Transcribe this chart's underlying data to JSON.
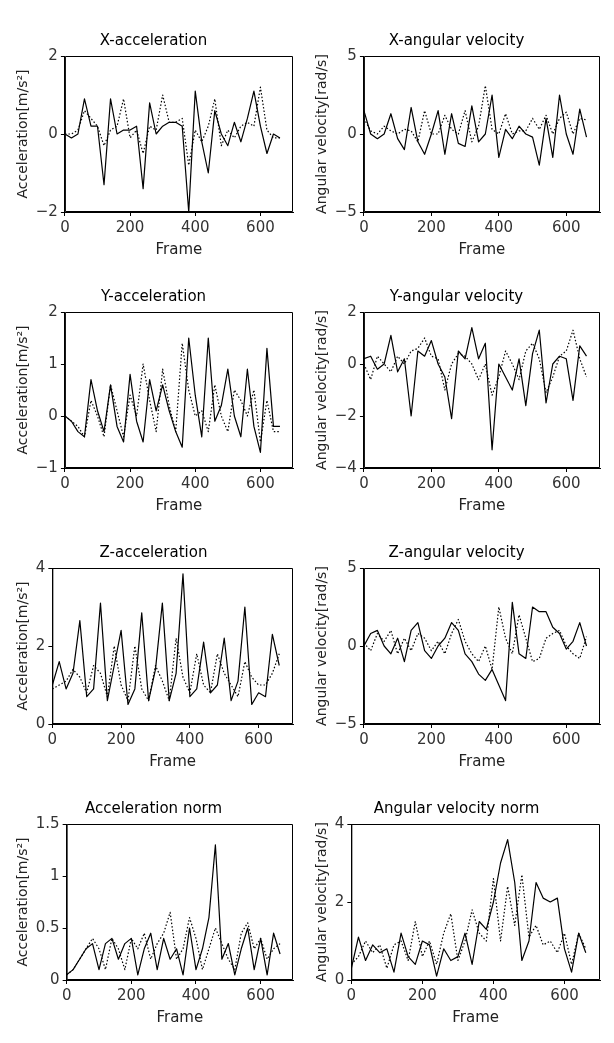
{
  "chart_data": [
    {
      "type": "line",
      "title": "X-acceleration",
      "xlabel": "Frame",
      "ylabel": "Acceleration[m/s²]",
      "x": [
        0,
        20,
        40,
        60,
        80,
        100,
        120,
        140,
        160,
        180,
        200,
        220,
        240,
        260,
        280,
        300,
        320,
        340,
        360,
        380,
        400,
        420,
        440,
        460,
        480,
        500,
        520,
        540,
        560,
        580,
        600,
        620,
        640,
        660
      ],
      "xlim": [
        0,
        700
      ],
      "xticks": [
        0,
        200,
        400,
        600
      ],
      "ylim": [
        -2,
        2
      ],
      "yticks": [
        -2,
        0,
        2
      ],
      "grid": false,
      "legend": false,
      "series": [
        {
          "color": "#000000",
          "line_style": "solid",
          "values": [
            0,
            -0.1,
            0,
            0.9,
            0.2,
            0.2,
            -1.3,
            0.9,
            0,
            0.1,
            0.1,
            0.2,
            -1.4,
            0.8,
            0,
            0.2,
            0.3,
            0.3,
            0.2,
            -2,
            1.1,
            -0.2,
            -1.0,
            0.6,
            0,
            -0.3,
            0.3,
            -0.2,
            0.4,
            1.1,
            0.2,
            -0.5,
            0,
            -0.1
          ]
        },
        {
          "color": "#000000",
          "line_style": "dotted",
          "values": [
            0,
            0,
            0.1,
            0.6,
            0.4,
            0.2,
            -0.3,
            0.1,
            0.2,
            0.9,
            -0.1,
            0.1,
            -0.5,
            0.2,
            0.1,
            1.0,
            0.3,
            0.3,
            0.4,
            -0.8,
            0.1,
            -0.2,
            0.2,
            0.9,
            -0.3,
            0.1,
            -0.1,
            0.2,
            0.3,
            0.2,
            1.2,
            0.1,
            -0.1,
            -0.1
          ]
        }
      ]
    },
    {
      "type": "line",
      "title": "X-angular velocity",
      "xlabel": "Frame",
      "ylabel": "Angular velocity[rad/s]",
      "x": [
        0,
        20,
        40,
        60,
        80,
        100,
        120,
        140,
        160,
        180,
        200,
        220,
        240,
        260,
        280,
        300,
        320,
        340,
        360,
        380,
        400,
        420,
        440,
        460,
        480,
        500,
        520,
        540,
        560,
        580,
        600,
        620,
        640,
        660
      ],
      "xlim": [
        0,
        700
      ],
      "xticks": [
        0,
        200,
        400,
        600
      ],
      "ylim": [
        -5,
        5
      ],
      "yticks": [
        -5,
        0,
        5
      ],
      "grid": false,
      "legend": false,
      "series": [
        {
          "color": "#000000",
          "line_style": "solid",
          "values": [
            1.5,
            0,
            -0.3,
            0,
            1.3,
            -0.3,
            -1.0,
            1.7,
            -0.5,
            -1.3,
            0,
            1.5,
            -1.3,
            1.3,
            -0.6,
            -0.8,
            1.8,
            -0.5,
            0,
            2.5,
            -1.5,
            0.3,
            -0.3,
            0.5,
            0,
            -0.2,
            -2.0,
            1.0,
            -1.5,
            2.5,
            0,
            -1.3,
            1.6,
            -0.2
          ]
        },
        {
          "color": "#000000",
          "line_style": "dotted",
          "values": [
            1.0,
            0.2,
            0,
            0.5,
            0.2,
            0,
            0.3,
            0.2,
            -0.5,
            1.5,
            0,
            0,
            1.2,
            0.3,
            0,
            1.5,
            -0.5,
            0.5,
            3.1,
            0.3,
            0,
            1.3,
            0,
            0.2,
            0.2,
            1.0,
            0.3,
            1.2,
            0,
            1.0,
            1.4,
            0,
            1.0,
            0.9
          ]
        }
      ]
    },
    {
      "type": "line",
      "title": "Y-acceleration",
      "xlabel": "Frame",
      "ylabel": "Acceleration[m/s²]",
      "x": [
        0,
        20,
        40,
        60,
        80,
        100,
        120,
        140,
        160,
        180,
        200,
        220,
        240,
        260,
        280,
        300,
        320,
        340,
        360,
        380,
        400,
        420,
        440,
        460,
        480,
        500,
        520,
        540,
        560,
        580,
        600,
        620,
        640,
        660
      ],
      "xlim": [
        0,
        700
      ],
      "xticks": [
        0,
        200,
        400,
        600
      ],
      "ylim": [
        -1,
        2
      ],
      "yticks": [
        -1,
        0,
        1,
        2
      ],
      "grid": false,
      "legend": false,
      "series": [
        {
          "color": "#000000",
          "line_style": "solid",
          "values": [
            0,
            -0.1,
            -0.3,
            -0.4,
            0.7,
            0.1,
            -0.3,
            0.6,
            -0.2,
            -0.5,
            0.8,
            -0.1,
            -0.5,
            0.7,
            0.1,
            0.6,
            0.1,
            -0.3,
            -0.6,
            1.5,
            0.4,
            -0.4,
            1.5,
            -0.1,
            0.2,
            0.9,
            0,
            -0.4,
            0.9,
            -0.2,
            -0.7,
            1.3,
            -0.2,
            -0.2
          ]
        },
        {
          "color": "#000000",
          "line_style": "dotted",
          "values": [
            0,
            -0.1,
            -0.2,
            -0.4,
            0.3,
            0,
            -0.4,
            0.6,
            0.1,
            -0.4,
            0.4,
            0,
            1.0,
            0.3,
            -0.3,
            0.9,
            0.2,
            -0.3,
            1.4,
            0.5,
            0,
            0.1,
            -0.3,
            0.6,
            0,
            -0.3,
            0.5,
            0.3,
            0,
            0.5,
            -0.5,
            0.3,
            -0.3,
            -0.3
          ]
        }
      ]
    },
    {
      "type": "line",
      "title": "Y-angular velocity",
      "xlabel": "Frame",
      "ylabel": "Angular velocity[rad/s]",
      "x": [
        0,
        20,
        40,
        60,
        80,
        100,
        120,
        140,
        160,
        180,
        200,
        220,
        240,
        260,
        280,
        300,
        320,
        340,
        360,
        380,
        400,
        420,
        440,
        460,
        480,
        500,
        520,
        540,
        560,
        580,
        600,
        620,
        640,
        660
      ],
      "xlim": [
        0,
        700
      ],
      "xticks": [
        0,
        200,
        400,
        600
      ],
      "ylim": [
        -4,
        2
      ],
      "yticks": [
        -4,
        -2,
        0,
        2
      ],
      "grid": false,
      "legend": false,
      "series": [
        {
          "color": "#000000",
          "line_style": "solid",
          "values": [
            0.2,
            0.3,
            -0.2,
            0,
            1.1,
            -0.3,
            0.2,
            -2,
            0.5,
            0.3,
            0.9,
            0,
            -0.5,
            -2.1,
            0.5,
            0.2,
            1.4,
            0.2,
            0.8,
            -3.3,
            0,
            -0.5,
            -1,
            0.2,
            -1.6,
            0.4,
            1.3,
            -1.5,
            0,
            0.3,
            0.2,
            -1.4,
            0.7,
            0.3
          ]
        },
        {
          "color": "#000000",
          "line_style": "dotted",
          "values": [
            0,
            -0.6,
            0.3,
            0,
            -0.3,
            0.3,
            0,
            0.5,
            0.6,
            1.0,
            0.3,
            0.2,
            -1.0,
            0,
            0.4,
            0.3,
            0,
            -0.6,
            0,
            -1.2,
            -0.5,
            0.5,
            0,
            -0.6,
            0.5,
            0.8,
            0.2,
            -1.1,
            -0.5,
            0.3,
            0.5,
            1.3,
            0.2,
            -0.5
          ]
        }
      ]
    },
    {
      "type": "line",
      "title": "Z-acceleration",
      "xlabel": "Frame",
      "ylabel": "Acceleration[m/s²]",
      "x": [
        0,
        20,
        40,
        60,
        80,
        100,
        120,
        140,
        160,
        180,
        200,
        220,
        240,
        260,
        280,
        300,
        320,
        340,
        360,
        380,
        400,
        420,
        440,
        460,
        480,
        500,
        520,
        540,
        560,
        580,
        600,
        620,
        640,
        660
      ],
      "xlim": [
        0,
        700
      ],
      "xticks": [
        0,
        200,
        400,
        600
      ],
      "ylim": [
        0,
        4
      ],
      "yticks": [
        0,
        2,
        4
      ],
      "grid": false,
      "legend": false,
      "series": [
        {
          "color": "#000000",
          "line_style": "solid",
          "values": [
            1.0,
            1.6,
            0.9,
            1.3,
            2.65,
            0.7,
            0.9,
            3.1,
            0.6,
            1.5,
            2.4,
            0.5,
            0.9,
            2.85,
            0.6,
            1.4,
            3.1,
            0.6,
            1.3,
            3.85,
            0.7,
            0.9,
            2.1,
            0.8,
            1.0,
            2.2,
            0.6,
            1.1,
            3.0,
            0.5,
            0.8,
            0.7,
            2.3,
            1.5
          ]
        },
        {
          "color": "#000000",
          "line_style": "dotted",
          "values": [
            0.9,
            1.0,
            1.1,
            1.4,
            1.2,
            0.8,
            1.5,
            1.3,
            0.7,
            2.0,
            1.0,
            0.6,
            2.0,
            0.9,
            0.6,
            1.5,
            1.1,
            0.6,
            2.2,
            1.2,
            0.8,
            1.8,
            1.0,
            0.8,
            1.8,
            1.3,
            1.0,
            0.7,
            1.6,
            1.2,
            1.0,
            1.0,
            1.3,
            1.8
          ]
        }
      ]
    },
    {
      "type": "line",
      "title": "Z-angular velocity",
      "xlabel": "Frame",
      "ylabel": "Angular velocity[rad/s]",
      "x": [
        0,
        20,
        40,
        60,
        80,
        100,
        120,
        140,
        160,
        180,
        200,
        220,
        240,
        260,
        280,
        300,
        320,
        340,
        360,
        380,
        400,
        420,
        440,
        460,
        480,
        500,
        520,
        540,
        560,
        580,
        600,
        620,
        640,
        660
      ],
      "xlim": [
        0,
        700
      ],
      "xticks": [
        0,
        200,
        400,
        600
      ],
      "ylim": [
        -5,
        5
      ],
      "yticks": [
        -5,
        0,
        5
      ],
      "grid": false,
      "legend": false,
      "series": [
        {
          "color": "#000000",
          "line_style": "solid",
          "values": [
            0,
            0.8,
            1.0,
            0,
            -0.5,
            0.5,
            -1.0,
            1.0,
            1.5,
            -0.3,
            -0.8,
            0,
            0.5,
            1.5,
            1.0,
            -0.5,
            -1.0,
            -1.8,
            -2.2,
            -1.5,
            -2.5,
            -3.5,
            2.8,
            -0.5,
            -0.8,
            2.5,
            2.2,
            2.2,
            1.2,
            0.8,
            -0.2,
            0.3,
            1.5,
            0
          ]
        },
        {
          "color": "#000000",
          "line_style": "dotted",
          "values": [
            0.2,
            -0.3,
            0.8,
            0.3,
            1.0,
            -0.5,
            0.5,
            -0.3,
            0.8,
            0.5,
            -0.3,
            0.3,
            -0.5,
            0.8,
            1.7,
            0.3,
            -0.5,
            -1.0,
            0,
            -1.5,
            2.5,
            0.5,
            -0.5,
            2.0,
            0.5,
            -1.0,
            -0.8,
            0.5,
            0.8,
            1.0,
            0,
            -0.5,
            -0.8,
            0.6
          ]
        }
      ]
    },
    {
      "type": "line",
      "title": "Acceleration norm",
      "xlabel": "Frame",
      "ylabel": "Acceleration[m/s²]",
      "x": [
        0,
        20,
        40,
        60,
        80,
        100,
        120,
        140,
        160,
        180,
        200,
        220,
        240,
        260,
        280,
        300,
        320,
        340,
        360,
        380,
        400,
        420,
        440,
        460,
        480,
        500,
        520,
        540,
        560,
        580,
        600,
        620,
        640,
        660
      ],
      "xlim": [
        0,
        700
      ],
      "xticks": [
        0,
        200,
        400,
        600
      ],
      "ylim": [
        0,
        1.5
      ],
      "yticks": [
        0,
        0.5,
        1,
        1.5
      ],
      "grid": false,
      "legend": false,
      "series": [
        {
          "color": "#000000",
          "line_style": "solid",
          "values": [
            0.05,
            0.1,
            0.2,
            0.3,
            0.35,
            0.1,
            0.35,
            0.4,
            0.2,
            0.35,
            0.4,
            0.05,
            0.3,
            0.45,
            0.1,
            0.4,
            0.2,
            0.3,
            0.05,
            0.5,
            0.1,
            0.3,
            0.6,
            1.3,
            0.2,
            0.35,
            0.05,
            0.3,
            0.5,
            0.1,
            0.4,
            0.05,
            0.45,
            0.25
          ]
        },
        {
          "color": "#000000",
          "line_style": "dotted",
          "values": [
            0.05,
            0.1,
            0.2,
            0.3,
            0.4,
            0.3,
            0.1,
            0.4,
            0.3,
            0.1,
            0.4,
            0.3,
            0.45,
            0.2,
            0.35,
            0.45,
            0.65,
            0.2,
            0.3,
            0.6,
            0.4,
            0.1,
            0.3,
            0.5,
            0.35,
            0.2,
            0.1,
            0.45,
            0.55,
            0.3,
            0.4,
            0.2,
            0.3,
            0.35
          ]
        }
      ]
    },
    {
      "type": "line",
      "title": "Angular velocity norm",
      "xlabel": "Frame",
      "ylabel": "Angular velocity[rad/s]",
      "x": [
        0,
        20,
        40,
        60,
        80,
        100,
        120,
        140,
        160,
        180,
        200,
        220,
        240,
        260,
        280,
        300,
        320,
        340,
        360,
        380,
        400,
        420,
        440,
        460,
        480,
        500,
        520,
        540,
        560,
        580,
        600,
        620,
        640,
        660
      ],
      "xlim": [
        0,
        700
      ],
      "xticks": [
        0,
        200,
        400,
        600
      ],
      "ylim": [
        0,
        4
      ],
      "yticks": [
        0,
        2,
        4
      ],
      "grid": false,
      "legend": false,
      "series": [
        {
          "color": "#000000",
          "line_style": "solid",
          "values": [
            0.3,
            1.1,
            0.5,
            0.9,
            0.7,
            0.8,
            0.2,
            1.2,
            0.6,
            0.4,
            1.0,
            0.9,
            0.1,
            0.8,
            0.5,
            0.6,
            1.2,
            0.4,
            1.5,
            1.3,
            2.0,
            3.0,
            3.6,
            2.5,
            0.5,
            1.0,
            2.5,
            2.1,
            2.0,
            2.1,
            0.8,
            0.2,
            1.2,
            0.7
          ]
        },
        {
          "color": "#000000",
          "line_style": "dotted",
          "values": [
            0.4,
            0.6,
            1.0,
            0.7,
            0.9,
            0.3,
            0.9,
            1.0,
            0.5,
            1.5,
            0.6,
            1.0,
            0.4,
            1.2,
            1.7,
            0.5,
            1.0,
            1.8,
            1.2,
            1.0,
            2.6,
            1.0,
            2.4,
            1.4,
            2.7,
            1.1,
            1.4,
            0.9,
            1.0,
            0.7,
            1.2,
            0.4,
            1.2,
            0.8
          ]
        }
      ]
    }
  ]
}
